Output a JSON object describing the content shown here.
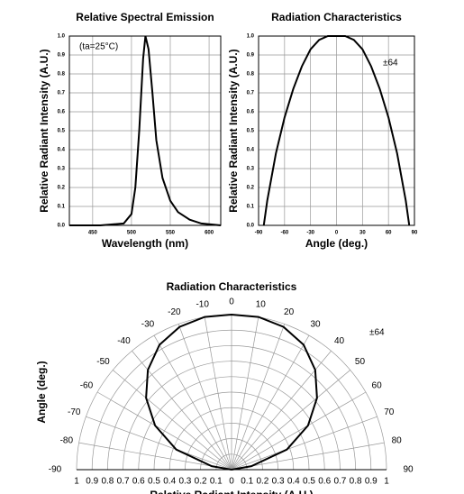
{
  "chart_data": [
    {
      "type": "line",
      "title": "Relative Spectral Emission",
      "x_label": "Wavelength (nm)",
      "y_label": "Relative Radiant Intensity (A.U.)",
      "annotation": "(ta=25°C)",
      "x": [
        420,
        460,
        490,
        500,
        505,
        510,
        515,
        518,
        522,
        527,
        532,
        540,
        550,
        560,
        575,
        590,
        615
      ],
      "values": [
        0,
        0,
        0.01,
        0.06,
        0.2,
        0.5,
        0.88,
        1.0,
        0.93,
        0.7,
        0.45,
        0.25,
        0.13,
        0.07,
        0.03,
        0.01,
        0
      ],
      "color": "#000000",
      "xlim": [
        420,
        615
      ],
      "xticks": [
        450,
        500,
        550,
        600
      ],
      "ylim": [
        0,
        1
      ],
      "yticks": [
        {
          "value": 0,
          "label": "0.0"
        },
        0.1,
        0.2,
        0.3,
        0.4,
        0.5,
        0.6,
        0.7,
        0.8,
        0.9,
        {
          "value": 1,
          "label": "1.0"
        }
      ],
      "grid": true
    },
    {
      "type": "line",
      "title": "Radiation Characteristics",
      "x_label": "Angle (deg.)",
      "y_label": "Relative Radiant Intensity (A.U.)",
      "annotation": "±64",
      "x": [
        -84,
        -80,
        -70,
        -60,
        -50,
        -40,
        -30,
        -20,
        -10,
        0,
        10,
        20,
        30,
        40,
        50,
        60,
        70,
        80,
        84
      ],
      "values": [
        0,
        0.13,
        0.38,
        0.57,
        0.72,
        0.84,
        0.93,
        0.98,
        1.0,
        1.0,
        1.0,
        0.98,
        0.93,
        0.84,
        0.72,
        0.57,
        0.38,
        0.13,
        0
      ],
      "color": "#000000",
      "xlim": [
        -90,
        90
      ],
      "xticks": [
        -90,
        -60,
        -30,
        0,
        30,
        60,
        90
      ],
      "ylim": [
        0,
        1
      ],
      "yticks": [
        {
          "value": 0,
          "label": "0.0"
        },
        0.1,
        0.2,
        0.3,
        0.4,
        0.5,
        0.6,
        0.7,
        0.8,
        0.9,
        {
          "value": 1,
          "label": "1.0"
        }
      ],
      "grid": true
    },
    {
      "type": "polar",
      "title": "Radiation Characteristics",
      "x_label": "Relative Radiant Intensity (A.U.)",
      "y_label": "Angle (deg.)",
      "annotation": "±64",
      "x": [
        -84,
        -80,
        -70,
        -60,
        -50,
        -40,
        -30,
        -20,
        -10,
        0,
        10,
        20,
        30,
        40,
        50,
        60,
        70,
        80,
        84
      ],
      "values": [
        0,
        0.13,
        0.38,
        0.57,
        0.72,
        0.84,
        0.93,
        0.98,
        1.0,
        1.0,
        1.0,
        0.98,
        0.93,
        0.84,
        0.72,
        0.57,
        0.38,
        0.13,
        0
      ],
      "color": "#000000",
      "rlim": [
        0,
        1
      ],
      "rticks": [
        0,
        0.1,
        0.2,
        0.3,
        0.4,
        0.5,
        0.6,
        0.7,
        0.8,
        0.9,
        1
      ],
      "angleticks": [
        -90,
        -80,
        -70,
        -60,
        -50,
        -40,
        -30,
        -20,
        -10,
        0,
        10,
        20,
        30,
        40,
        50,
        60,
        70,
        80,
        90
      ],
      "grid": true
    }
  ]
}
